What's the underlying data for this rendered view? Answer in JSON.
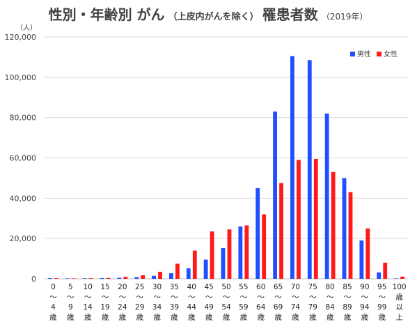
{
  "chart_data": {
    "type": "bar",
    "title_main": "性別・年齢別 がん",
    "title_paren": "（上皮内がんを除く）",
    "title_tail": "罹患者数",
    "title_year": "（2019年）",
    "unit": "（人）",
    "ylim": [
      0,
      120000
    ],
    "yticks": [
      "0",
      "20,000",
      "40,000",
      "60,000",
      "80,000",
      "100,000",
      "120,000"
    ],
    "grid": true,
    "legend_position": "top-right",
    "categories": [
      [
        "0",
        "～",
        "4",
        "歳"
      ],
      [
        "5",
        "～",
        "9",
        "歳"
      ],
      [
        "10",
        "～",
        "14",
        "歳"
      ],
      [
        "15",
        "～",
        "19",
        "歳"
      ],
      [
        "20",
        "～",
        "24",
        "歳"
      ],
      [
        "25",
        "～",
        "29",
        "歳"
      ],
      [
        "30",
        "～",
        "34",
        "歳"
      ],
      [
        "35",
        "～",
        "39",
        "歳"
      ],
      [
        "40",
        "～",
        "44",
        "歳"
      ],
      [
        "45",
        "～",
        "49",
        "歳"
      ],
      [
        "50",
        "～",
        "54",
        "歳"
      ],
      [
        "55",
        "～",
        "59",
        "歳"
      ],
      [
        "60",
        "～",
        "64",
        "歳"
      ],
      [
        "65",
        "～",
        "69",
        "歳"
      ],
      [
        "70",
        "～",
        "74",
        "歳"
      ],
      [
        "75",
        "～",
        "79",
        "歳"
      ],
      [
        "80",
        "～",
        "84",
        "歳"
      ],
      [
        "85",
        "～",
        "89",
        "歳"
      ],
      [
        "90",
        "～",
        "94",
        "歳"
      ],
      [
        "95",
        "～",
        "99",
        "歳"
      ],
      [
        "100",
        "歳",
        "以",
        "上"
      ]
    ],
    "series": [
      {
        "name": "男性",
        "color": "#1f4fff",
        "values": [
          300,
          200,
          250,
          350,
          500,
          800,
          1500,
          2800,
          5200,
          9500,
          15200,
          26000,
          45000,
          83000,
          110500,
          108500,
          82000,
          50000,
          19000,
          3200,
          200
        ]
      },
      {
        "name": "女性",
        "color": "#ff1a1a",
        "values": [
          300,
          200,
          300,
          450,
          1000,
          1800,
          3500,
          7500,
          14000,
          23500,
          24500,
          26500,
          32000,
          47500,
          59000,
          59500,
          53000,
          43000,
          25000,
          8000,
          1100
        ]
      }
    ]
  }
}
